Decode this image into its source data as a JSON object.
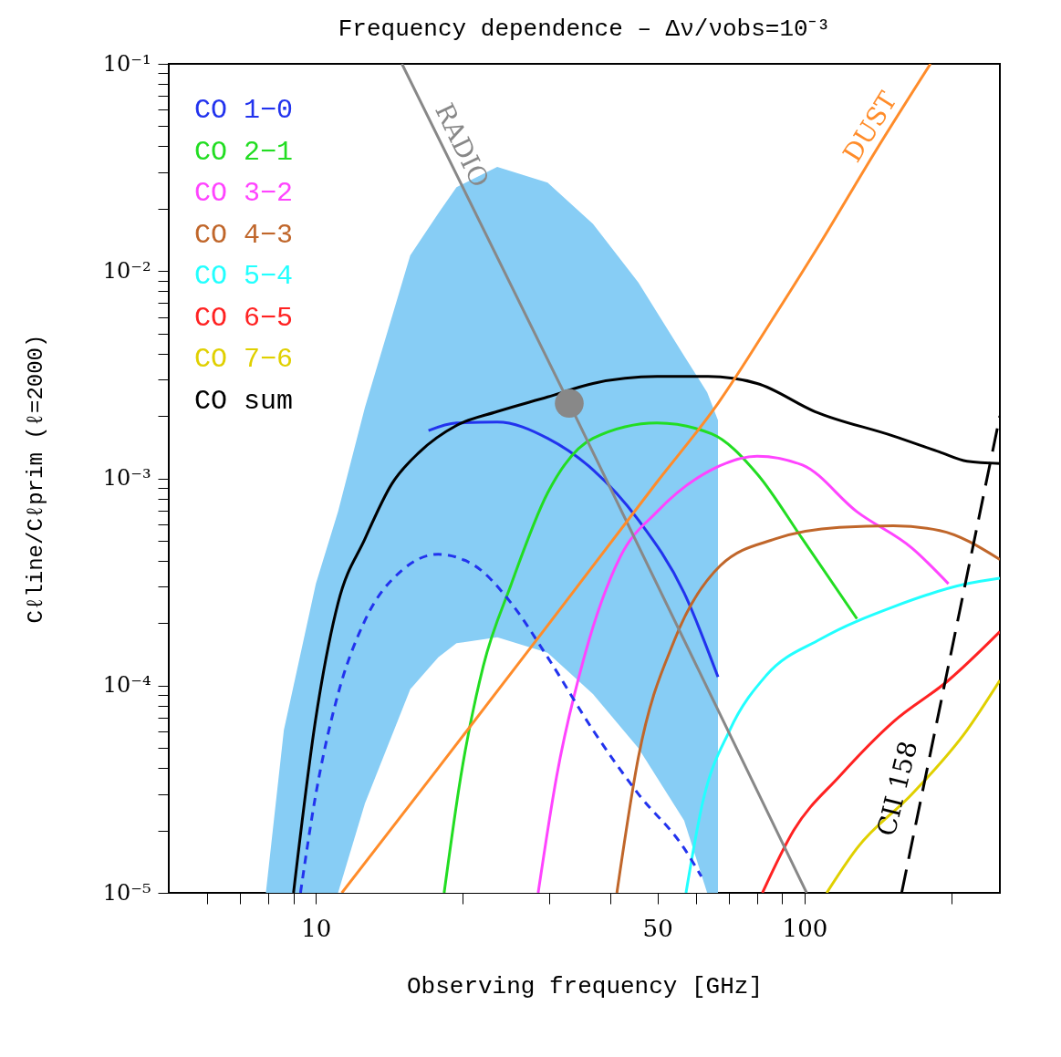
{
  "chart_data": {
    "type": "line",
    "title": "Frequency dependence – Δν/νobs=10⁻³",
    "xlabel": "Observing frequency [GHz]",
    "ylabel": "Cℓline/Cℓprim (ℓ=2000)",
    "log": "xy",
    "grid": false,
    "legend": "top left",
    "xlim": [
      5,
      251
    ],
    "ylim": [
      1e-05,
      0.1
    ],
    "xticks": [
      {
        "value": 6,
        "label": null
      },
      {
        "value": 7,
        "label": null
      },
      {
        "value": 8,
        "label": null
      },
      {
        "value": 9,
        "label": null
      },
      10,
      {
        "value": 20,
        "label": null
      },
      {
        "value": 30,
        "label": null
      },
      {
        "value": 40,
        "label": null
      },
      50,
      {
        "value": 60,
        "label": null
      },
      {
        "value": 70,
        "label": null
      },
      {
        "value": 80,
        "label": null
      },
      {
        "value": 90,
        "label": null
      },
      100,
      {
        "value": 200,
        "label": null
      }
    ],
    "yticks": [
      {
        "value": 1e-05,
        "label": "10⁻⁵"
      },
      {
        "value": 2e-05,
        "label": null
      },
      {
        "value": 3e-05,
        "label": null
      },
      {
        "value": 4e-05,
        "label": null
      },
      {
        "value": 5e-05,
        "label": null
      },
      {
        "value": 6e-05,
        "label": null
      },
      {
        "value": 7e-05,
        "label": null
      },
      {
        "value": 8e-05,
        "label": null
      },
      {
        "value": 9e-05,
        "label": null
      },
      {
        "value": 0.0001,
        "label": "10⁻⁴"
      },
      {
        "value": 0.0002,
        "label": null
      },
      {
        "value": 0.0003,
        "label": null
      },
      {
        "value": 0.0004,
        "label": null
      },
      {
        "value": 0.0005,
        "label": null
      },
      {
        "value": 0.0006,
        "label": null
      },
      {
        "value": 0.0007,
        "label": null
      },
      {
        "value": 0.0008,
        "label": null
      },
      {
        "value": 0.0009,
        "label": null
      },
      {
        "value": 0.001,
        "label": "10⁻³"
      },
      {
        "value": 0.002,
        "label": null
      },
      {
        "value": 0.003,
        "label": null
      },
      {
        "value": 0.004,
        "label": null
      },
      {
        "value": 0.005,
        "label": null
      },
      {
        "value": 0.006,
        "label": null
      },
      {
        "value": 0.007,
        "label": null
      },
      {
        "value": 0.008,
        "label": null
      },
      {
        "value": 0.009,
        "label": null
      },
      {
        "value": 0.01,
        "label": "10⁻²"
      },
      {
        "value": 0.02,
        "label": null
      },
      {
        "value": 0.03,
        "label": null
      },
      {
        "value": 0.04,
        "label": null
      },
      {
        "value": 0.05,
        "label": null
      },
      {
        "value": 0.06,
        "label": null
      },
      {
        "value": 0.07,
        "label": null
      },
      {
        "value": 0.08,
        "label": null
      },
      {
        "value": 0.09,
        "label": null
      },
      {
        "value": 0.1,
        "label": "10⁻¹"
      }
    ],
    "series": [
      {
        "type": "area",
        "color": "#87cdf5",
        "x": [
          7.9,
          8.6,
          10,
          11.1,
          12.6,
          15.6,
          17.8,
          19.4,
          23.5,
          29.8,
          36.9,
          45.7,
          56.7,
          63.2,
          66.5
        ],
        "values": [
          1e-05,
          6.1e-05,
          0.00031,
          0.00069,
          0.0022,
          0.0119,
          0.019,
          0.0254,
          0.0318,
          0.0267,
          0.0169,
          0.0088,
          0.0039,
          0.0026,
          0.00191
        ]
      },
      {
        "type": "area",
        "color": "#ffffff",
        "x": [
          11.1,
          12.6,
          15.6,
          17.8,
          19.4,
          23.5,
          29.8,
          36.9,
          45.7,
          56.7,
          63.2
        ],
        "values": [
          1e-05,
          2.7e-05,
          9.6e-05,
          0.000137,
          0.00016,
          0.000171,
          0.000144,
          9.1e-05,
          5e-05,
          2.23e-05,
          1e-05
        ]
      },
      {
        "type": "line",
        "name": "CO 1−0",
        "color": "#2233ee",
        "x": [
          17.0,
          19.4,
          23.5,
          29.8,
          36.9,
          45.7,
          56.7,
          66.5
        ],
        "values": [
          0.0017,
          0.00185,
          0.00187,
          0.00156,
          0.0011,
          0.00063,
          0.00028,
          0.00011
        ]
      },
      {
        "type": "line",
        "name": "CO 2−1",
        "color": "#22dd22",
        "x": [
          18.3,
          19.8,
          22.0,
          25.1,
          29.8,
          36.9,
          49.9,
          64.5,
          80,
          99,
          128
        ],
        "values": [
          1e-05,
          3.66e-05,
          0.000124,
          0.000308,
          0.00085,
          0.00156,
          0.00185,
          0.00164,
          0.00105,
          0.00051,
          0.00021
        ]
      },
      {
        "type": "line",
        "name": "CO 3−2",
        "color": "#ff44ff",
        "x": [
          28.5,
          31.1,
          35.4,
          42.0,
          49.9,
          64.5,
          80,
          99,
          128,
          166,
          197
        ],
        "values": [
          1e-05,
          3.66e-05,
          0.000137,
          0.00042,
          0.00069,
          0.0011,
          0.00128,
          0.00116,
          0.00069,
          0.00046,
          0.00031
        ]
      },
      {
        "type": "line",
        "name": "CO 4−3",
        "color": "#c0662a",
        "x": [
          41.3,
          45.7,
          54.3,
          67.3,
          87.1,
          117.8,
          152,
          189,
          251
        ],
        "values": [
          1e-05,
          4.5e-05,
          0.000168,
          0.00038,
          0.00051,
          0.00058,
          0.00059,
          0.00056,
          0.000406
        ]
      },
      {
        "type": "line",
        "name": "CO 5−4",
        "color": "#22ffff",
        "x": [
          57.2,
          61.8,
          70.3,
          83.5,
          108,
          152,
          215,
          251
        ],
        "values": [
          1e-05,
          2.7e-05,
          6.1e-05,
          0.000112,
          0.000168,
          0.00024,
          0.00031,
          0.00033
        ]
      },
      {
        "type": "line",
        "name": "CO 6−5",
        "color": "#ff2222",
        "x": [
          82,
          95,
          118,
          152,
          197,
          251
        ],
        "values": [
          1e-05,
          2e-05,
          3.66e-05,
          6.7e-05,
          0.000106,
          0.000182
        ]
      },
      {
        "type": "line",
        "name": "CO 7−6",
        "color": "#e0d000",
        "x": [
          111,
          128,
          166,
          215,
          251
        ],
        "values": [
          1e-05,
          1.64e-05,
          3e-05,
          6.1e-05,
          0.000106
        ]
      },
      {
        "type": "line",
        "name": "CO sum",
        "color": "#000000",
        "x": [
          9.0,
          10,
          11.1,
          12.6,
          14.3,
          16.3,
          19.4,
          23.5,
          29.8,
          36.9,
          49.9,
          63.5,
          80,
          105,
          152,
          189,
          215,
          251
        ],
        "values": [
          1e-05,
          7e-05,
          0.00025,
          0.00051,
          0.00094,
          0.00134,
          0.0018,
          0.0021,
          0.00247,
          0.00287,
          0.0031,
          0.0031,
          0.00287,
          0.0021,
          0.0016,
          0.00134,
          0.00121,
          0.00118
        ]
      },
      {
        "type": "line",
        "color": "#2233ee",
        "line_style": "dashed",
        "x": [
          9.3,
          10,
          11.1,
          12.6,
          15.0,
          17.8,
          21.1,
          25.1,
          29.8,
          36.9,
          45.7,
          56.7,
          61.5
        ],
        "values": [
          1e-05,
          3e-05,
          9.1e-05,
          0.000206,
          0.00036,
          0.00043,
          0.00038,
          0.00025,
          0.000137,
          6.1e-05,
          3e-05,
          1.64e-05,
          1.2e-05
        ]
      },
      {
        "type": "line",
        "color": "#888888",
        "x": [
          15.0,
          33.0,
          101
        ],
        "values": [
          0.1,
          0.0023,
          1e-05
        ]
      },
      {
        "type": "line",
        "color": "#ff8c2a",
        "x": [
          11.3,
          17.8,
          29.8,
          49.9,
          66.5,
          87.1,
          108,
          140,
          181
        ],
        "values": [
          1e-05,
          4e-05,
          0.000195,
          0.00096,
          0.0023,
          0.00615,
          0.0138,
          0.0382,
          0.1
        ]
      },
      {
        "type": "line",
        "color": "#000000",
        "line_style": "longdash",
        "x": [
          158,
          251
        ],
        "values": [
          1e-05,
          0.002
        ]
      },
      {
        "type": "scatter",
        "color": "#888888",
        "x": [
          33.0
        ],
        "values": [
          0.0023
        ]
      }
    ],
    "annotations": [
      "RADIO",
      "DUST",
      "CII 158"
    ]
  }
}
